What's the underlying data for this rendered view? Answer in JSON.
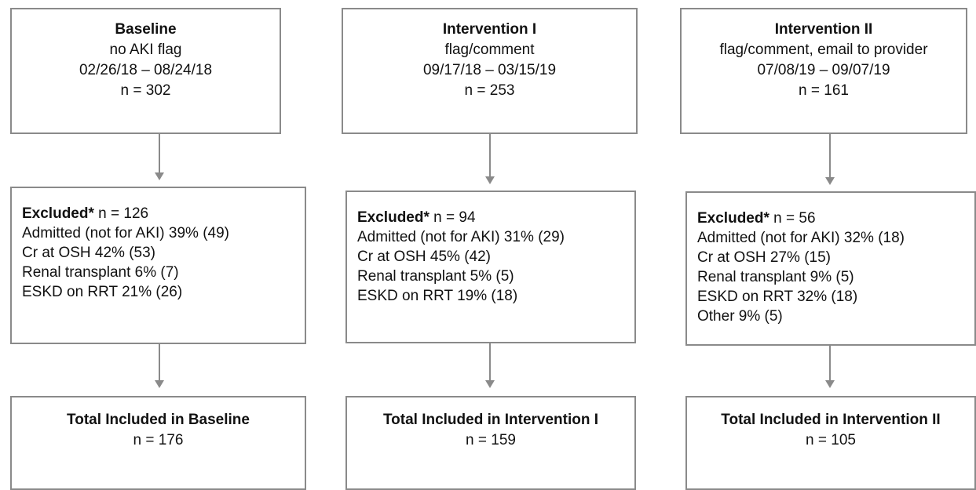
{
  "columns": [
    {
      "top": {
        "title": "Baseline",
        "lines": [
          "no AKI flag",
          "02/26/18 – 08/24/18",
          "n = 302"
        ]
      },
      "excluded": {
        "label": "Excluded*",
        "n": "n = 126",
        "items": [
          "Admitted (not for AKI) 39% (49)",
          "Cr at OSH 42% (53)",
          "Renal transplant 6% (7)",
          "ESKD on RRT 21% (26)"
        ]
      },
      "total": {
        "title": "Total Included in Baseline",
        "n": "n = 176"
      }
    },
    {
      "top": {
        "title": "Intervention I",
        "lines": [
          "flag/comment",
          "09/17/18 – 03/15/19",
          "n = 253"
        ]
      },
      "excluded": {
        "label": "Excluded*",
        "n": "n = 94",
        "items": [
          "Admitted (not for AKI) 31% (29)",
          "Cr at OSH 45% (42)",
          "Renal transplant 5% (5)",
          "ESKD on RRT 19% (18)"
        ]
      },
      "total": {
        "title": "Total Included in Intervention I",
        "n": "n = 159"
      }
    },
    {
      "top": {
        "title": "Intervention II",
        "lines": [
          "flag/comment, email to provider",
          "07/08/19 – 09/07/19",
          "n = 161"
        ]
      },
      "excluded": {
        "label": "Excluded*",
        "n": "n = 56",
        "items": [
          "Admitted (not for AKI) 32% (18)",
          "Cr at OSH 27% (15)",
          "Renal transplant 9% (5)",
          "ESKD on RRT 32% (18)",
          "Other 9% (5)"
        ]
      },
      "total": {
        "title": "Total Included in Intervention II",
        "n": "n = 105"
      }
    }
  ]
}
